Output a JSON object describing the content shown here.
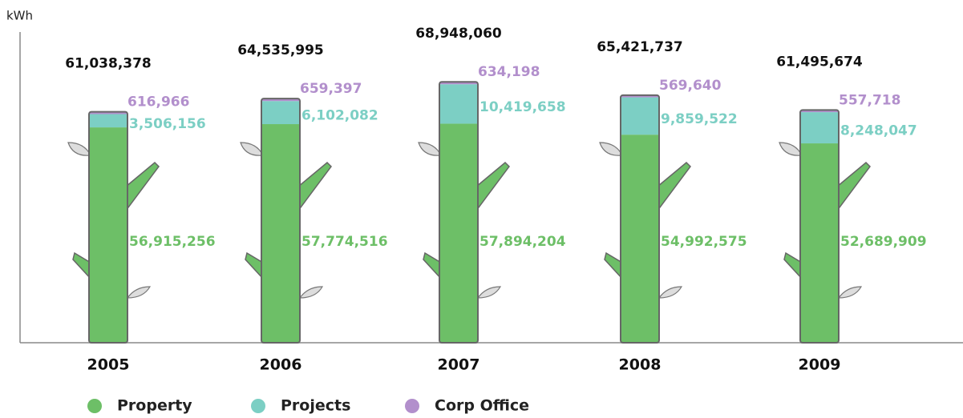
{
  "chart_data": {
    "type": "bar",
    "stacked": true,
    "y_label": "kWh",
    "categories": [
      "2005",
      "2006",
      "2007",
      "2008",
      "2009"
    ],
    "series": [
      {
        "name": "Property",
        "color": "#6dbf67",
        "values": [
          56915256,
          57774516,
          57894204,
          54992575,
          52689909
        ],
        "value_labels": [
          "56,915,256",
          "57,774,516",
          "57,894,204",
          "54,992,575",
          "52,689,909"
        ]
      },
      {
        "name": "Projects",
        "color": "#7ccfc4",
        "values": [
          3506156,
          6102082,
          10419658,
          9859522,
          8248047
        ],
        "value_labels": [
          "3,506,156",
          "6,102,082",
          "10,419,658",
          "9,859,522",
          "8,248,047"
        ]
      },
      {
        "name": "Corp Office",
        "color": "#b28fcc",
        "values": [
          616966,
          659397,
          634198,
          569640,
          557718
        ],
        "value_labels": [
          "616,966",
          "659,397",
          "634,198",
          "569,640",
          "557,718"
        ]
      }
    ],
    "totals": {
      "values": [
        61038378,
        64535995,
        68948060,
        65421737,
        61495674
      ],
      "value_labels": [
        "61,038,378",
        "64,535,995",
        "68,948,060",
        "65,421,737",
        "61,495,674"
      ]
    },
    "ylim": [
      0,
      80000000
    ]
  }
}
